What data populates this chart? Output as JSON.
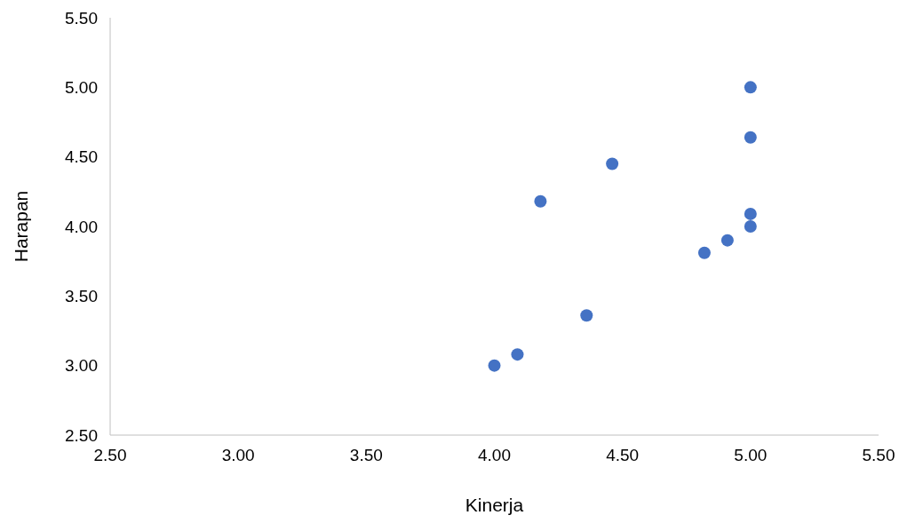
{
  "chart_data": {
    "type": "scatter",
    "xlabel": "Kinerja",
    "ylabel": "Harapan",
    "x": [
      5.0,
      5.0,
      4.46,
      4.18,
      5.0,
      5.0,
      4.91,
      4.82,
      4.36,
      4.09,
      4.0
    ],
    "values": [
      5.0,
      4.64,
      4.45,
      4.18,
      4.09,
      4.0,
      3.9,
      3.81,
      3.36,
      3.08,
      3.0
    ],
    "color": "#4472c4",
    "marker": "circle",
    "grid": false,
    "legend": false,
    "xlim": [
      2.5,
      5.5
    ],
    "ylim": [
      2.5,
      5.5
    ],
    "xticks": [
      {
        "value": 2.5,
        "label": "2.50"
      },
      {
        "value": 3,
        "label": "3.00"
      },
      {
        "value": 3.5,
        "label": "3.50"
      },
      {
        "value": 4,
        "label": "4.00"
      },
      {
        "value": 4.5,
        "label": "4.50"
      },
      {
        "value": 5,
        "label": "5.00"
      },
      {
        "value": 5.5,
        "label": "5.50"
      }
    ],
    "yticks": [
      {
        "value": 2.5,
        "label": "2.50"
      },
      {
        "value": 3,
        "label": "3.00"
      },
      {
        "value": 3.5,
        "label": "3.50"
      },
      {
        "value": 4,
        "label": "4.00"
      },
      {
        "value": 4.5,
        "label": "4.50"
      },
      {
        "value": 5,
        "label": "5.00"
      },
      {
        "value": 5.5,
        "label": "5.50"
      }
    ]
  }
}
